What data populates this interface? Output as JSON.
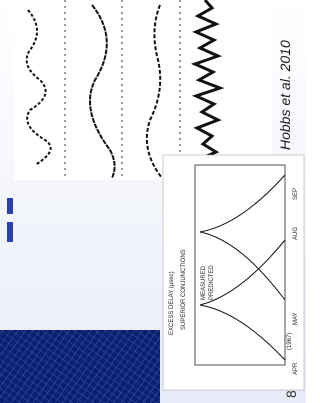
{
  "citation": "Hobbs et al. 2010",
  "plot": {
    "title": "SUPERIOR CONJUNCTIONS",
    "legend": [
      "MEASURED",
      "PREDICTED"
    ],
    "months": [
      "APR",
      "MAY",
      "AUG",
      "SEP"
    ],
    "year": "(1967)",
    "ylabel": "EXCESS DELAY (μsec)"
  },
  "page_number": "8"
}
